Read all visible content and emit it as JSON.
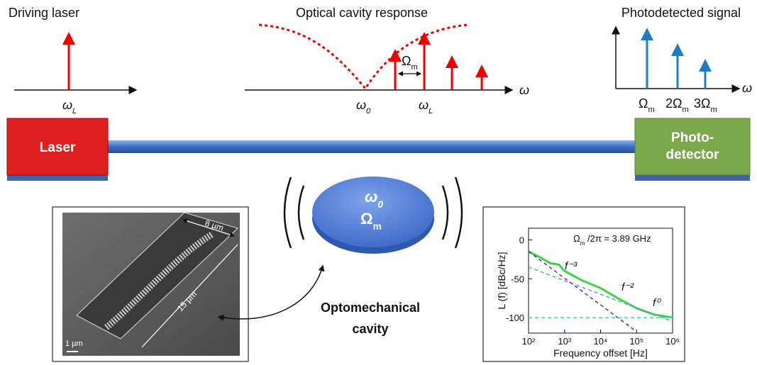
{
  "driving": {
    "title": "Driving laser",
    "label": {
      "base": "ω",
      "sub": "L"
    }
  },
  "cavity_response": {
    "title": "Optical cavity response",
    "omega0": {
      "base": "ω",
      "sub": "0"
    },
    "omegaL": {
      "base": "ω",
      "sub": "L"
    },
    "spacing": {
      "base": "Ω",
      "sub": "m"
    },
    "axis": "ω"
  },
  "photodetected": {
    "title": "Photodetected signal",
    "labels": [
      {
        "base": "Ω",
        "sub": "m"
      },
      {
        "base": "2Ω",
        "sub": "m"
      },
      {
        "base": "3Ω",
        "sub": "m"
      }
    ],
    "axis": "ω"
  },
  "laser": {
    "label": "Laser"
  },
  "detector": {
    "lines": [
      "Photo-",
      "detector"
    ]
  },
  "disk": {
    "omega0": {
      "base": "ω",
      "sub": "0"
    },
    "omegam": {
      "base": "Ω",
      "sub": "m"
    }
  },
  "sem": {
    "width": "8 µm",
    "length": "15 µm",
    "scale": "1 µm"
  },
  "caption": {
    "lines": [
      "Optomechanical",
      "cavity"
    ]
  },
  "chart_data": {
    "type": "line",
    "annotation": {
      "base": "Ω",
      "sub": "m",
      "rest": " /2π = 3.89 GHz"
    },
    "slopes": [
      "f⁻³",
      "f⁻²",
      "f⁰"
    ],
    "xlabel": "Frequency offset [Hz]",
    "ylabel": "L (f) [dBc/Hz]",
    "xscale": "log",
    "xlim": [
      100,
      1000000
    ],
    "ylim": [
      -120,
      15
    ],
    "xticks": [
      {
        "value": 100,
        "label": "10²"
      },
      {
        "value": 1000,
        "label": "10³"
      },
      {
        "value": 10000,
        "label": "10⁴"
      },
      {
        "value": 100000,
        "label": "10⁵"
      },
      {
        "value": 1000000,
        "label": "10⁶"
      }
    ],
    "yticks": [
      0,
      -50,
      -100
    ],
    "series": [
      {
        "color": "#3fd43f",
        "dash": false,
        "x": [
          100,
          200,
          400,
          700,
          1000,
          3000,
          10000,
          30000,
          100000,
          300000,
          1000000
        ],
        "values": [
          -15,
          -22,
          -30,
          -32,
          -40,
          -52,
          -62,
          -75,
          -88,
          -96,
          -100
        ]
      },
      {
        "color": "#4aa3e0",
        "dash": true,
        "x": [
          100,
          1000000
        ],
        "values": [
          -35,
          -105
        ]
      },
      {
        "color": "#5a2fb0",
        "dash": true,
        "x": [
          100,
          100000
        ],
        "values": [
          -15,
          -118
        ]
      },
      {
        "color": "#3ddc9a",
        "dash": true,
        "x": [
          100,
          1000000
        ],
        "values": [
          -100,
          -100
        ]
      }
    ]
  }
}
